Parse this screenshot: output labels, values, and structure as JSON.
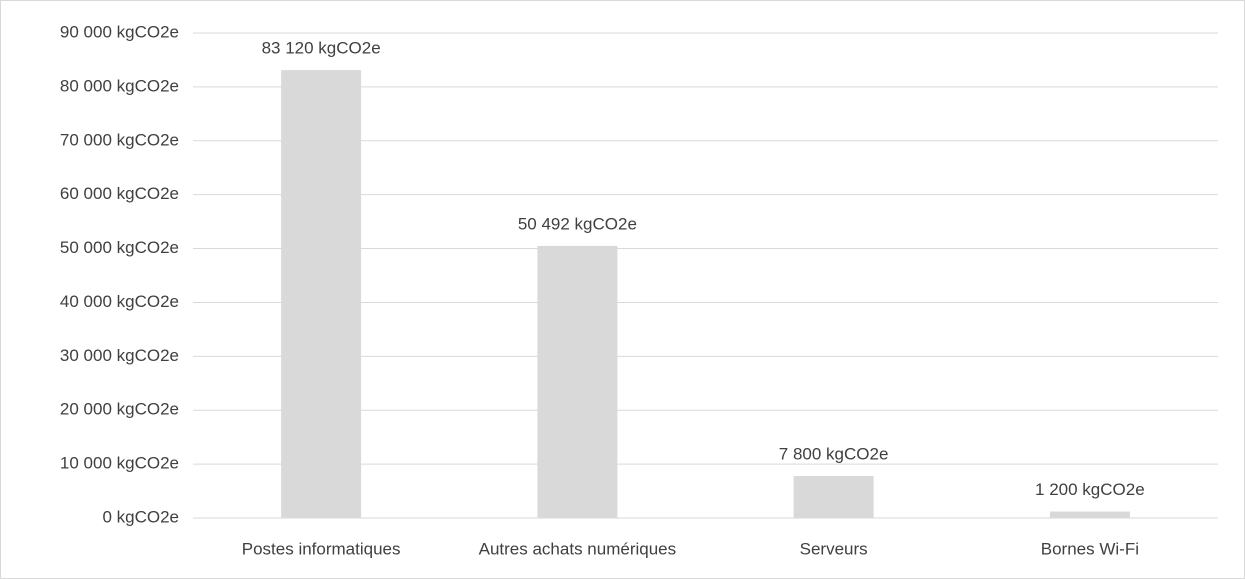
{
  "chart_data": {
    "type": "bar",
    "categories": [
      "Postes informatiques",
      "Autres achats numériques",
      "Serveurs",
      "Bornes Wi-Fi"
    ],
    "values": [
      83120,
      50492,
      7800,
      1200
    ],
    "value_labels": [
      "83 120 kgCO2e",
      "50 492 kgCO2e",
      "7 800 kgCO2e",
      "1 200 kgCO2e"
    ],
    "color": "#d9d9d9",
    "ylim": [
      0,
      90000
    ],
    "yticks": [
      {
        "value": 0,
        "label": "0 kgCO2e"
      },
      {
        "value": 10000,
        "label": "10 000 kgCO2e"
      },
      {
        "value": 20000,
        "label": "20 000 kgCO2e"
      },
      {
        "value": 30000,
        "label": "30 000 kgCO2e"
      },
      {
        "value": 40000,
        "label": "40 000 kgCO2e"
      },
      {
        "value": 50000,
        "label": "50 000 kgCO2e"
      },
      {
        "value": 60000,
        "label": "60 000 kgCO2e"
      },
      {
        "value": 70000,
        "label": "70 000 kgCO2e"
      },
      {
        "value": 80000,
        "label": "80 000 kgCO2e"
      },
      {
        "value": 90000,
        "label": "90 000 kgCO2e"
      }
    ],
    "grid": true
  }
}
